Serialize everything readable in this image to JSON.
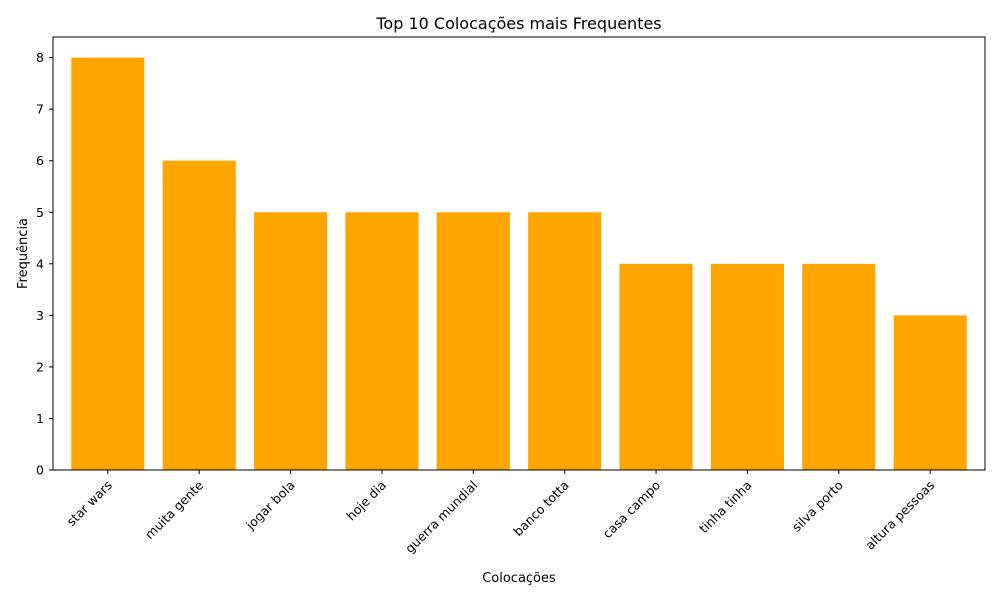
{
  "chart_data": {
    "type": "bar",
    "title": "Top 10 Colocações mais Frequentes",
    "xlabel": "Colocações",
    "ylabel": "Frequência",
    "categories": [
      "star wars",
      "muita gente",
      "jogar bola",
      "hoje dia",
      "guerra mundial",
      "banco totta",
      "casa campo",
      "tinha tinha",
      "silva porto",
      "altura pessoas"
    ],
    "values": [
      8,
      6,
      5,
      5,
      5,
      5,
      4,
      4,
      4,
      3
    ],
    "ylim": [
      0,
      8.4
    ],
    "yticks": [
      "0",
      "1",
      "2",
      "3",
      "4",
      "5",
      "6",
      "7",
      "8"
    ],
    "grid": false,
    "bar_color": "#ffa500",
    "x_tick_rotation_deg": 45
  }
}
